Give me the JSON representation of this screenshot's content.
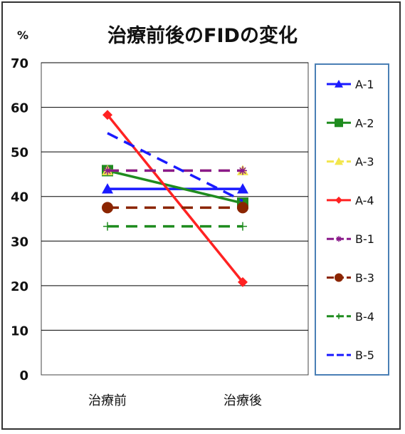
{
  "chart_data": {
    "type": "line",
    "title": "治療前後のFIDの変化",
    "ylabel": "%",
    "xlabel": "",
    "categories": [
      "治療前",
      "治療後"
    ],
    "ylim": [
      0,
      70
    ],
    "yticks": [
      0,
      10,
      20,
      30,
      40,
      50,
      60,
      70
    ],
    "grid": true,
    "legend_position": "right",
    "series": [
      {
        "name": "A-1",
        "values": [
          41.7,
          41.7
        ],
        "color": "#1a1aff",
        "marker": "triangle",
        "dash": false
      },
      {
        "name": "A-2",
        "values": [
          45.8,
          38.5
        ],
        "color": "#1f8c1f",
        "marker": "square",
        "dash": false
      },
      {
        "name": "A-3",
        "values": [
          45.8,
          45.8
        ],
        "color": "#f2e64d",
        "marker": "triangle",
        "dash": true
      },
      {
        "name": "A-4",
        "values": [
          58.3,
          20.8
        ],
        "color": "#ff2222",
        "marker": "diamond",
        "dash": false
      },
      {
        "name": "B-1",
        "values": [
          45.8,
          45.8
        ],
        "color": "#8a1a8a",
        "marker": "star",
        "dash": true
      },
      {
        "name": "B-3",
        "values": [
          37.5,
          37.5
        ],
        "color": "#8b2500",
        "marker": "circle",
        "dash": true
      },
      {
        "name": "B-4",
        "values": [
          33.3,
          33.3
        ],
        "color": "#1f8c1f",
        "marker": "plus",
        "dash": true
      },
      {
        "name": "B-5",
        "values": [
          54.2,
          39.0
        ],
        "color": "#1a1aff",
        "marker": "none",
        "dash": true
      }
    ]
  }
}
